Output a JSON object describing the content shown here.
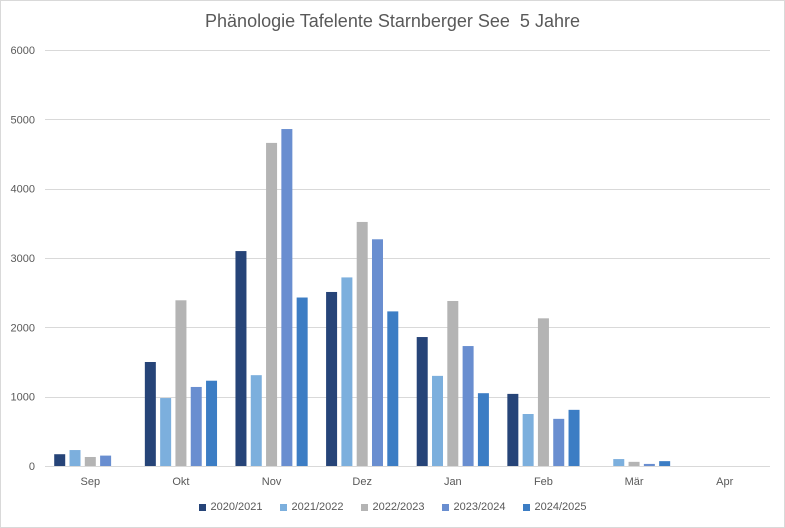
{
  "chart_data": {
    "type": "bar",
    "title": "Phänologie Tafelente Starnberger See  5 Jahre",
    "xlabel": "",
    "ylabel": "",
    "ylim": [
      0,
      6000
    ],
    "yticks": [
      0,
      1000,
      2000,
      3000,
      4000,
      5000,
      6000
    ],
    "grid": true,
    "legend_position": "bottom",
    "categories": [
      "Sep",
      "Okt",
      "Nov",
      "Dez",
      "Jan",
      "Feb",
      "Mär",
      "Apr"
    ],
    "series": [
      {
        "name": "2020/2021",
        "color": "#264478",
        "values": [
          170,
          1500,
          3100,
          2510,
          1860,
          1040,
          null,
          null
        ]
      },
      {
        "name": "2021/2022",
        "color": "#7CAFDD",
        "values": [
          230,
          980,
          1310,
          2720,
          1300,
          750,
          100,
          null
        ]
      },
      {
        "name": "2022/2023",
        "color": "#B4B4B4",
        "values": [
          130,
          2390,
          4660,
          3520,
          2380,
          2130,
          60,
          null
        ]
      },
      {
        "name": "2023/2024",
        "color": "#698ED0",
        "values": [
          150,
          1140,
          4860,
          3270,
          1730,
          680,
          30,
          null
        ]
      },
      {
        "name": "2024/2025",
        "color": "#3C7DC4",
        "values": [
          null,
          1230,
          2430,
          2230,
          1050,
          810,
          70,
          null
        ]
      }
    ]
  }
}
